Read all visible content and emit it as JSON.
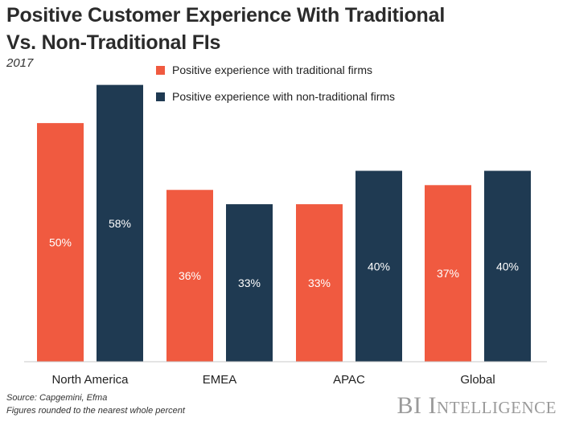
{
  "title": "Positive Customer Experience With Traditional Vs. Non-Traditional FIs",
  "subtitle": "2017",
  "source": "Source: Capgemini, Efma",
  "note": "Figures rounded to the nearest whole percent",
  "brand": "BI Intelligence",
  "colors": {
    "traditional": "#f05a40",
    "non_traditional": "#1f3a52",
    "axis": "#c8c8c8"
  },
  "chart_data": {
    "type": "bar",
    "categories": [
      "North America",
      "EMEA",
      "APAC",
      "Global"
    ],
    "series": [
      {
        "name": "Positive experience with traditional firms",
        "values": [
          50,
          36,
          33,
          37
        ]
      },
      {
        "name": "Positive experience with non-traditional firms",
        "values": [
          58,
          33,
          40,
          40
        ]
      }
    ],
    "value_labels": [
      [
        "50%",
        "36%",
        "33%",
        "37%"
      ],
      [
        "58%",
        "33%",
        "40%",
        "40%"
      ]
    ],
    "ylim": [
      0,
      64
    ],
    "grid": false,
    "legend": "top"
  }
}
